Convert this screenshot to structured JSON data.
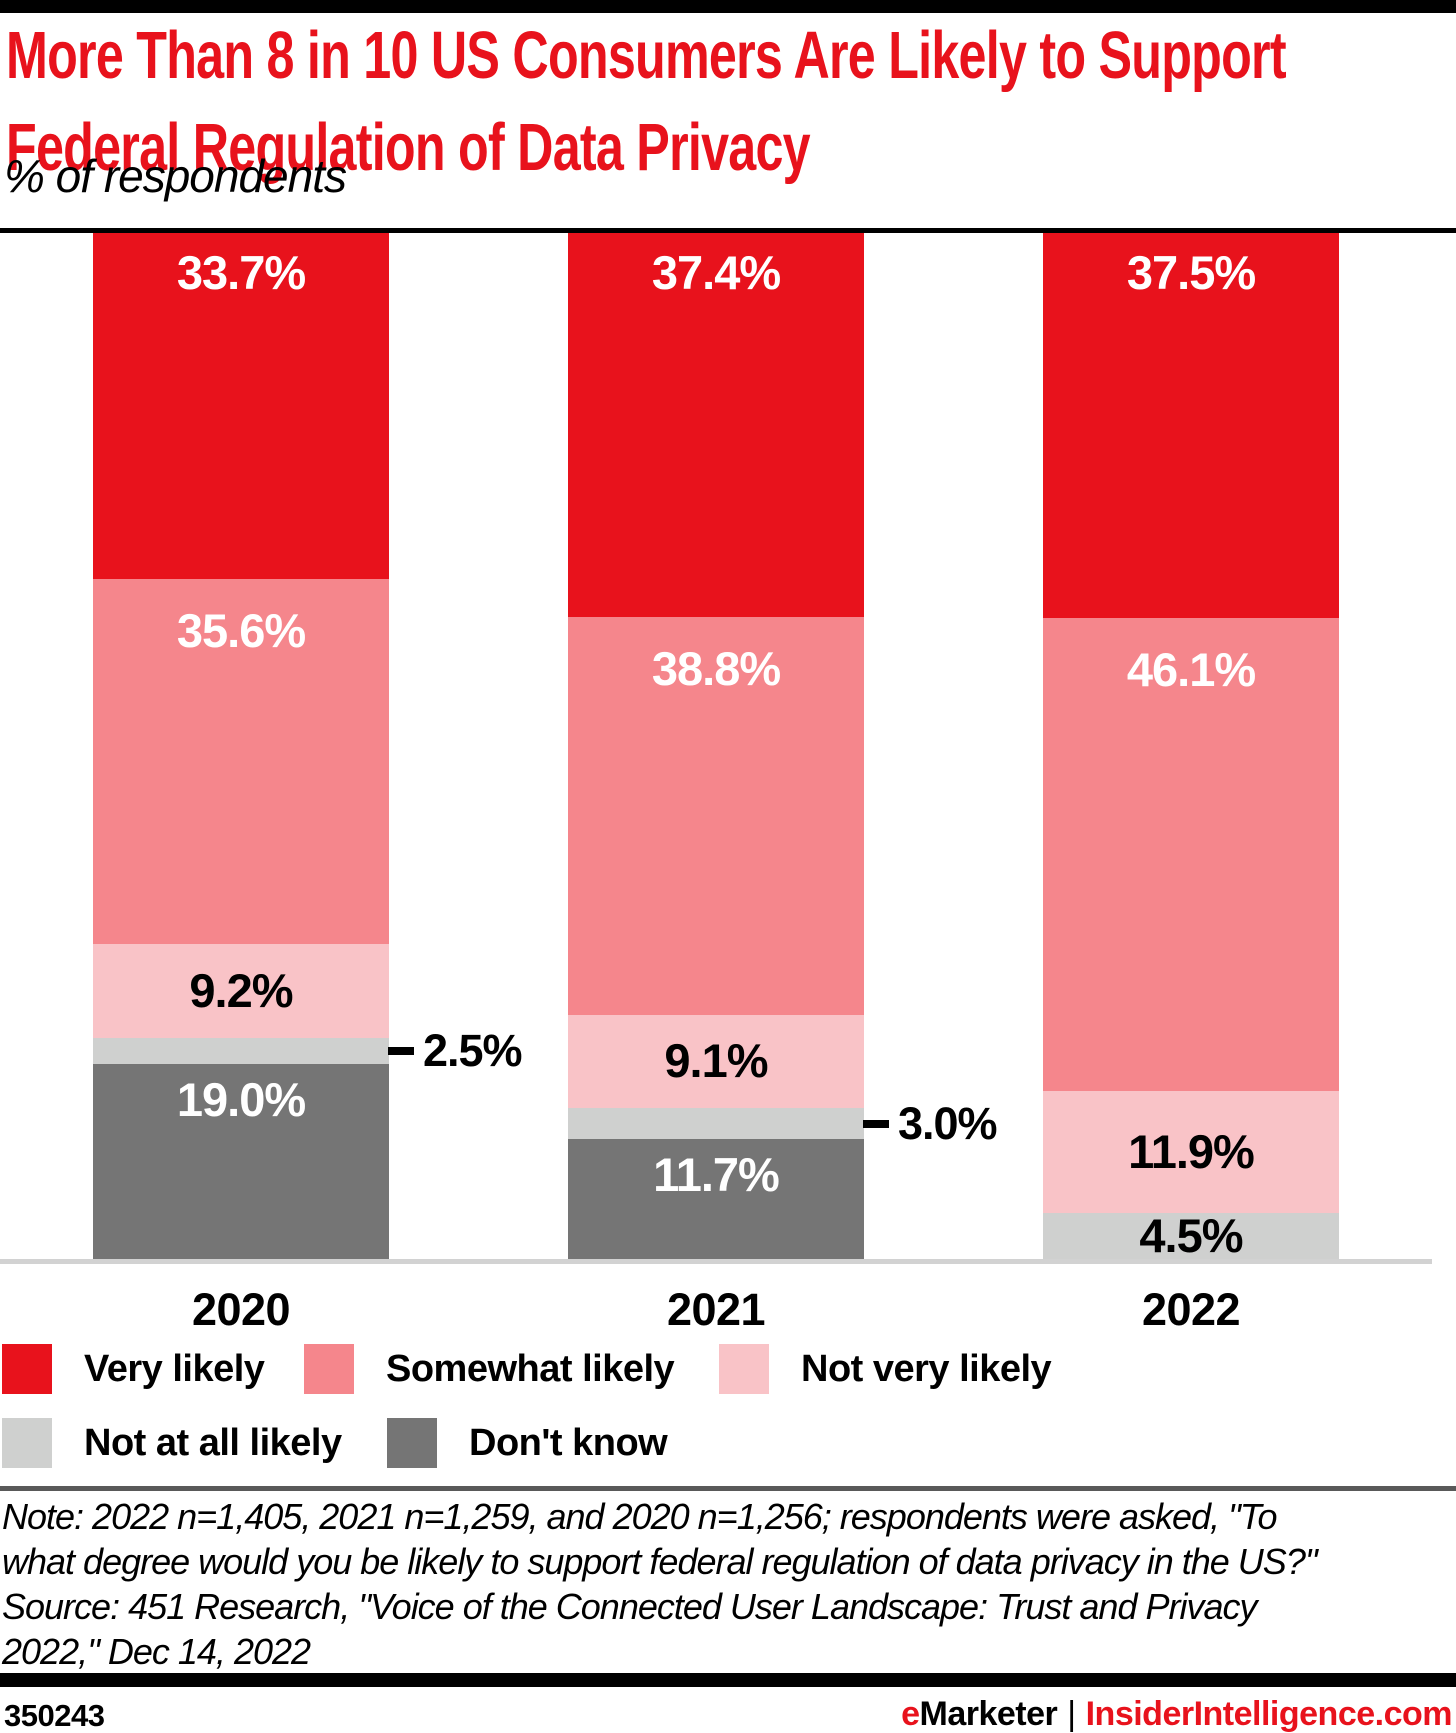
{
  "header": {
    "title_line1": "More Than 8 in 10 US Consumers Are Likely to Support",
    "title_line2": "Federal Regulation of Data Privacy",
    "subtitle": "% of respondents",
    "title_color": "#e8121c"
  },
  "chart_data": {
    "type": "bar",
    "stacked": true,
    "title": "More Than 8 in 10 US Consumers Are Likely to Support Federal Regulation of Data Privacy",
    "ylabel": "% of respondents",
    "categories": [
      "2020",
      "2021",
      "2022"
    ],
    "series": [
      {
        "name": "Very likely",
        "color": "#e8121c",
        "label_color": "#ffffff",
        "values": [
          33.7,
          37.4,
          37.5
        ]
      },
      {
        "name": "Somewhat likely",
        "color": "#f5868c",
        "label_color": "#ffffff",
        "values": [
          35.6,
          38.8,
          46.1
        ]
      },
      {
        "name": "Not very likely",
        "color": "#f9c3c7",
        "label_color": "#000000",
        "values": [
          9.2,
          9.1,
          11.9
        ]
      },
      {
        "name": "Not at all likely",
        "color": "#cfd0cf",
        "label_color": "#000000",
        "values": [
          2.5,
          3.0,
          4.5
        ],
        "callout_labels": [
          true,
          true,
          false
        ]
      },
      {
        "name": "Don't know",
        "color": "#757575",
        "label_color": "#ffffff",
        "values": [
          19.0,
          11.7,
          0
        ]
      }
    ],
    "value_suffix": "%",
    "ylim": [
      0,
      100
    ],
    "grid": false,
    "legend_position": "bottom"
  },
  "note": {
    "line1": "Note: 2022 n=1,405, 2021 n=1,259, and 2020 n=1,256; respondents were asked, \"To",
    "line2": "what degree would you be likely to support federal regulation of data privacy in the US?\"",
    "line3": "Source: 451 Research, \"Voice of the Connected User Landscape: Trust and Privacy",
    "line4": "2022,\" Dec 14, 2022"
  },
  "footer": {
    "chart_id": "350243",
    "brand_e": "e",
    "brand_rest": "Marketer",
    "separator": "|",
    "site": "InsiderIntelligence.com",
    "brand_red": "#e8121c"
  }
}
